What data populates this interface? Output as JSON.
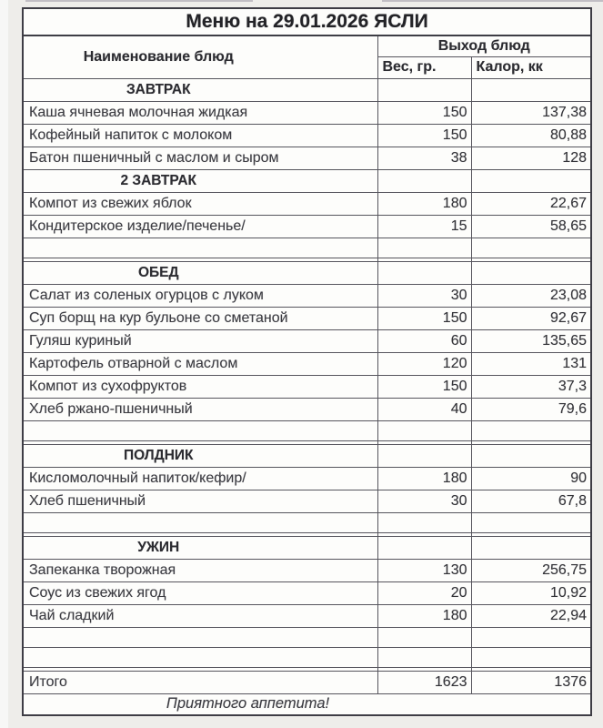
{
  "title": "Меню на 29.01.2026 ЯСЛИ",
  "columns": {
    "name": "Наименование блюд",
    "group": "Выход блюд",
    "weight": "Вес, гр.",
    "calories": "Калор, кк"
  },
  "rows": [
    {
      "type": "section",
      "label": "ЗАВТРАК"
    },
    {
      "type": "dish",
      "name": "Каша ячневая молочная жидкая",
      "weight": "150",
      "calories": "137,38"
    },
    {
      "type": "dish",
      "name": "Кофейный напиток с молоком",
      "weight": "150",
      "calories": "80,88"
    },
    {
      "type": "dish",
      "name": "Батон пшеничный с маслом и сыром",
      "weight": "38",
      "calories": "128"
    },
    {
      "type": "section",
      "label": "2 ЗАВТРАК"
    },
    {
      "type": "dish",
      "name": "Компот из свежих яблок",
      "weight": "180",
      "calories": "22,67"
    },
    {
      "type": "dish",
      "name": "Кондитерское изделие/печенье/",
      "weight": "15",
      "calories": "58,65"
    },
    {
      "type": "empty"
    },
    {
      "type": "spacer"
    },
    {
      "type": "section",
      "label": "ОБЕД"
    },
    {
      "type": "dish",
      "name": "Салат из соленых огурцов с луком",
      "weight": "30",
      "calories": "23,08"
    },
    {
      "type": "dish",
      "name": "Суп борщ на кур бульоне со сметаной",
      "weight": "150",
      "calories": "92,67"
    },
    {
      "type": "dish",
      "name": "Гуляш куриный",
      "weight": "60",
      "calories": "135,65"
    },
    {
      "type": "dish",
      "name": "Картофель отварной с маслом",
      "weight": "120",
      "calories": "131"
    },
    {
      "type": "dish",
      "name": "Компот из сухофруктов",
      "weight": "150",
      "calories": "37,3"
    },
    {
      "type": "dish",
      "name": "Хлеб ржано-пшеничный",
      "weight": "40",
      "calories": "79,6"
    },
    {
      "type": "empty"
    },
    {
      "type": "spacer"
    },
    {
      "type": "section",
      "label": "ПОЛДНИК"
    },
    {
      "type": "dish",
      "name": "Кисломолочный напиток/кефир/",
      "weight": "180",
      "calories": "90"
    },
    {
      "type": "dish",
      "name": "Хлеб пшеничный",
      "weight": "30",
      "calories": "67,8"
    },
    {
      "type": "empty"
    },
    {
      "type": "spacer"
    },
    {
      "type": "section",
      "label": "УЖИН"
    },
    {
      "type": "dish",
      "name": "Запеканка творожная",
      "weight": "130",
      "calories": "256,75"
    },
    {
      "type": "dish",
      "name": "Соус из свежих ягод",
      "weight": "20",
      "calories": "10,92"
    },
    {
      "type": "dish",
      "name": "Чай сладкий",
      "weight": "180",
      "calories": "22,94"
    },
    {
      "type": "empty"
    },
    {
      "type": "empty"
    },
    {
      "type": "spacer"
    },
    {
      "type": "total",
      "name": "Итого",
      "weight": "1623",
      "calories": "1376"
    },
    {
      "type": "footer",
      "label": "Приятного аппетита!"
    }
  ],
  "colors": {
    "paper": "#fdfdfb",
    "page_background": "#eeedea",
    "line": "#56555d",
    "ink": "#2c2c31"
  }
}
